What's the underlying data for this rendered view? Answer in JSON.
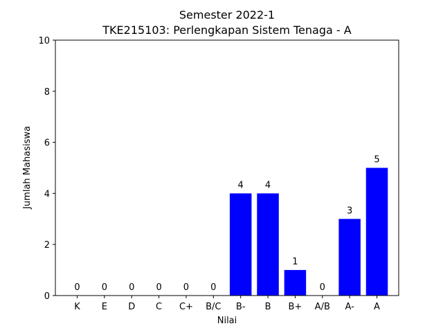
{
  "chart_data": {
    "type": "bar",
    "title_line1": "Semester 2022-1",
    "title_line2": "TKE215103: Perlengkapan Sistem Tenaga - A",
    "xlabel": "Nilai",
    "ylabel": "Jumlah Mahasiswa",
    "categories": [
      "K",
      "E",
      "D",
      "C",
      "C+",
      "B/C",
      "B-",
      "B",
      "B+",
      "A/B",
      "A-",
      "A"
    ],
    "values": [
      0,
      0,
      0,
      0,
      0,
      0,
      4,
      4,
      1,
      0,
      3,
      5
    ],
    "ylim": [
      0,
      10
    ],
    "yticks": [
      0,
      2,
      4,
      6,
      8,
      10
    ],
    "bar_color": "#0000ff",
    "grid": false
  }
}
